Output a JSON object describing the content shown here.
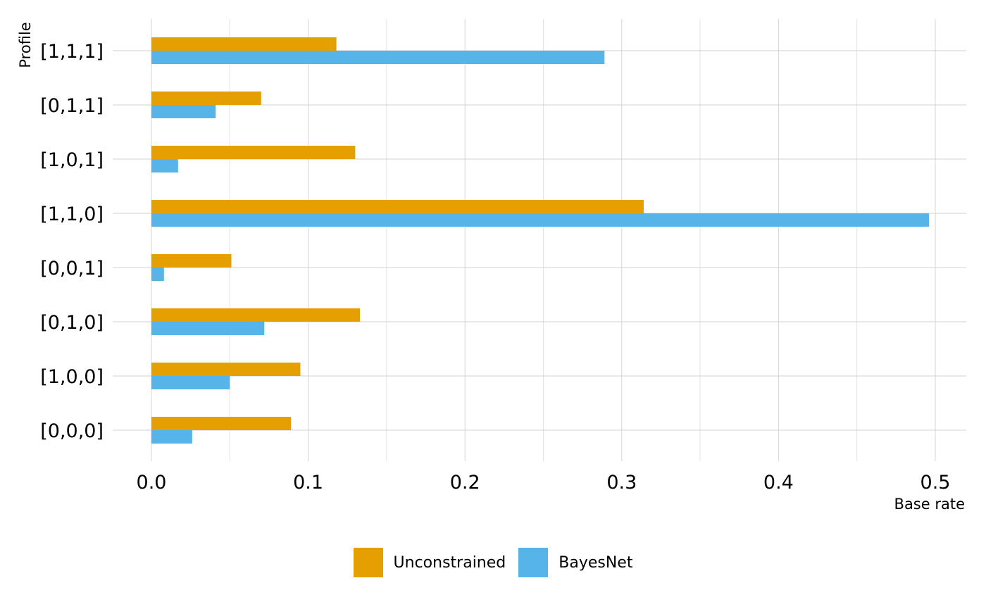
{
  "chart_data": {
    "type": "bar",
    "orientation": "horizontal",
    "title": "",
    "xlabel": "Base rate",
    "ylabel": "Profile",
    "xlim": [
      0,
      0.5
    ],
    "xticks": [
      "0.0",
      "0.1",
      "0.2",
      "0.3",
      "0.4",
      "0.5"
    ],
    "grid": true,
    "legend_position": "bottom",
    "categories": [
      "[1,1,1]",
      "[0,1,1]",
      "[1,0,1]",
      "[1,1,0]",
      "[0,0,1]",
      "[0,1,0]",
      "[1,0,0]",
      "[0,0,0]"
    ],
    "series": [
      {
        "name": "Unconstrained",
        "color": "#E69F00",
        "values": [
          0.118,
          0.07,
          0.13,
          0.314,
          0.051,
          0.133,
          0.095,
          0.089
        ]
      },
      {
        "name": "BayesNet",
        "color": "#56B4E9",
        "values": [
          0.289,
          0.041,
          0.017,
          0.496,
          0.008,
          0.072,
          0.05,
          0.026
        ]
      }
    ]
  }
}
